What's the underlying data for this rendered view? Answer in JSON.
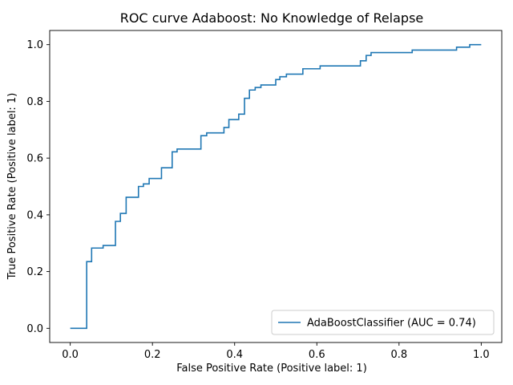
{
  "chart_data": {
    "type": "line",
    "title": "ROC curve Adaboost: No Knowledge of Relapse",
    "xlabel": "False Positive Rate (Positive label: 1)",
    "ylabel": "True Positive Rate (Positive label: 1)",
    "xlim": [
      -0.05,
      1.05
    ],
    "ylim": [
      -0.05,
      1.05
    ],
    "xticks": [
      "0.0",
      "0.2",
      "0.4",
      "0.6",
      "0.8",
      "1.0"
    ],
    "yticks": [
      "0.0",
      "0.2",
      "0.4",
      "0.6",
      "0.8",
      "1.0"
    ],
    "grid": false,
    "legend_position": "lower-right",
    "series": [
      {
        "name": "AdaBoostClassifier (AUC = 0.74)",
        "color": "#1f77b4",
        "points": [
          [
            0.0,
            0.0
          ],
          [
            0.04,
            0.0
          ],
          [
            0.04,
            0.235
          ],
          [
            0.052,
            0.235
          ],
          [
            0.052,
            0.283
          ],
          [
            0.08,
            0.283
          ],
          [
            0.08,
            0.292
          ],
          [
            0.11,
            0.292
          ],
          [
            0.11,
            0.377
          ],
          [
            0.122,
            0.377
          ],
          [
            0.122,
            0.405
          ],
          [
            0.136,
            0.405
          ],
          [
            0.136,
            0.462
          ],
          [
            0.166,
            0.462
          ],
          [
            0.166,
            0.5
          ],
          [
            0.178,
            0.5
          ],
          [
            0.178,
            0.509
          ],
          [
            0.192,
            0.509
          ],
          [
            0.192,
            0.528
          ],
          [
            0.222,
            0.528
          ],
          [
            0.222,
            0.566
          ],
          [
            0.248,
            0.566
          ],
          [
            0.248,
            0.622
          ],
          [
            0.26,
            0.622
          ],
          [
            0.26,
            0.632
          ],
          [
            0.318,
            0.632
          ],
          [
            0.318,
            0.679
          ],
          [
            0.332,
            0.679
          ],
          [
            0.332,
            0.689
          ],
          [
            0.374,
            0.689
          ],
          [
            0.374,
            0.708
          ],
          [
            0.386,
            0.708
          ],
          [
            0.386,
            0.736
          ],
          [
            0.41,
            0.736
          ],
          [
            0.41,
            0.755
          ],
          [
            0.424,
            0.755
          ],
          [
            0.424,
            0.811
          ],
          [
            0.436,
            0.811
          ],
          [
            0.436,
            0.84
          ],
          [
            0.45,
            0.84
          ],
          [
            0.45,
            0.849
          ],
          [
            0.464,
            0.849
          ],
          [
            0.464,
            0.858
          ],
          [
            0.5,
            0.858
          ],
          [
            0.5,
            0.877
          ],
          [
            0.51,
            0.877
          ],
          [
            0.51,
            0.887
          ],
          [
            0.526,
            0.887
          ],
          [
            0.526,
            0.896
          ],
          [
            0.566,
            0.896
          ],
          [
            0.566,
            0.915
          ],
          [
            0.608,
            0.915
          ],
          [
            0.608,
            0.925
          ],
          [
            0.706,
            0.925
          ],
          [
            0.706,
            0.943
          ],
          [
            0.72,
            0.943
          ],
          [
            0.72,
            0.962
          ],
          [
            0.732,
            0.962
          ],
          [
            0.732,
            0.972
          ],
          [
            0.832,
            0.972
          ],
          [
            0.832,
            0.981
          ],
          [
            0.94,
            0.981
          ],
          [
            0.94,
            0.991
          ],
          [
            0.972,
            0.991
          ],
          [
            0.972,
            1.0
          ],
          [
            1.0,
            1.0
          ]
        ]
      }
    ]
  }
}
